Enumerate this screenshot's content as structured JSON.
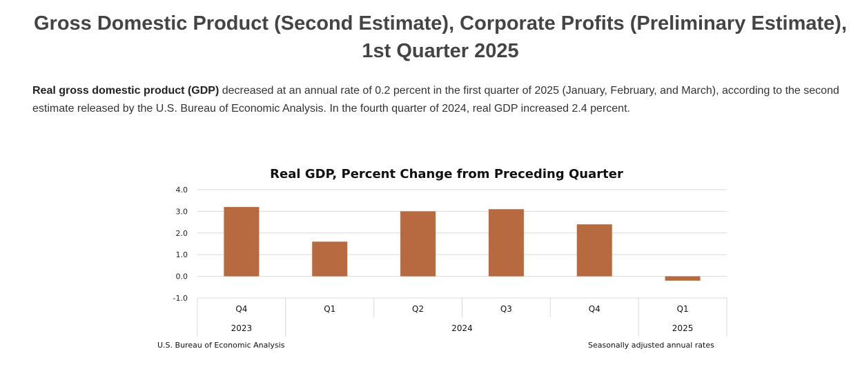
{
  "page": {
    "title_line1": "Gross Domestic Product (Second Estimate), Corporate Profits (Preliminary Estimate),",
    "title_line2": "1st Quarter 2025",
    "intro_bold": "Real gross domestic product (GDP)",
    "intro_rest": " decreased at an annual rate of 0.2 percent in the first quarter of 2025 (January, February, and March), according to the second estimate released by the U.S. Bureau of Economic Analysis. In the fourth quarter of 2024, real GDP increased 2.4 percent."
  },
  "chart_data": {
    "type": "bar",
    "title": "Real GDP, Percent Change from Preceding Quarter",
    "categories": [
      "Q4",
      "Q1",
      "Q2",
      "Q3",
      "Q4",
      "Q1"
    ],
    "year_groups": [
      {
        "label": "2023",
        "span": 1
      },
      {
        "label": "2024",
        "span": 4
      },
      {
        "label": "2025",
        "span": 1
      }
    ],
    "values": [
      3.2,
      1.6,
      3.0,
      3.1,
      2.4,
      -0.2
    ],
    "bar_color": "#B7693F",
    "grid_color": "#D9D9D9",
    "ylim": [
      -1.0,
      4.0
    ],
    "yticks": [
      "4.0",
      "3.0",
      "2.0",
      "1.0",
      "0.0",
      "-1.0"
    ],
    "ytick_values": [
      4,
      3,
      2,
      1,
      0,
      -1
    ],
    "grid": true,
    "source_note": "U.S. Bureau of Economic Analysis",
    "rate_note": "Seasonally adjusted annual rates"
  }
}
